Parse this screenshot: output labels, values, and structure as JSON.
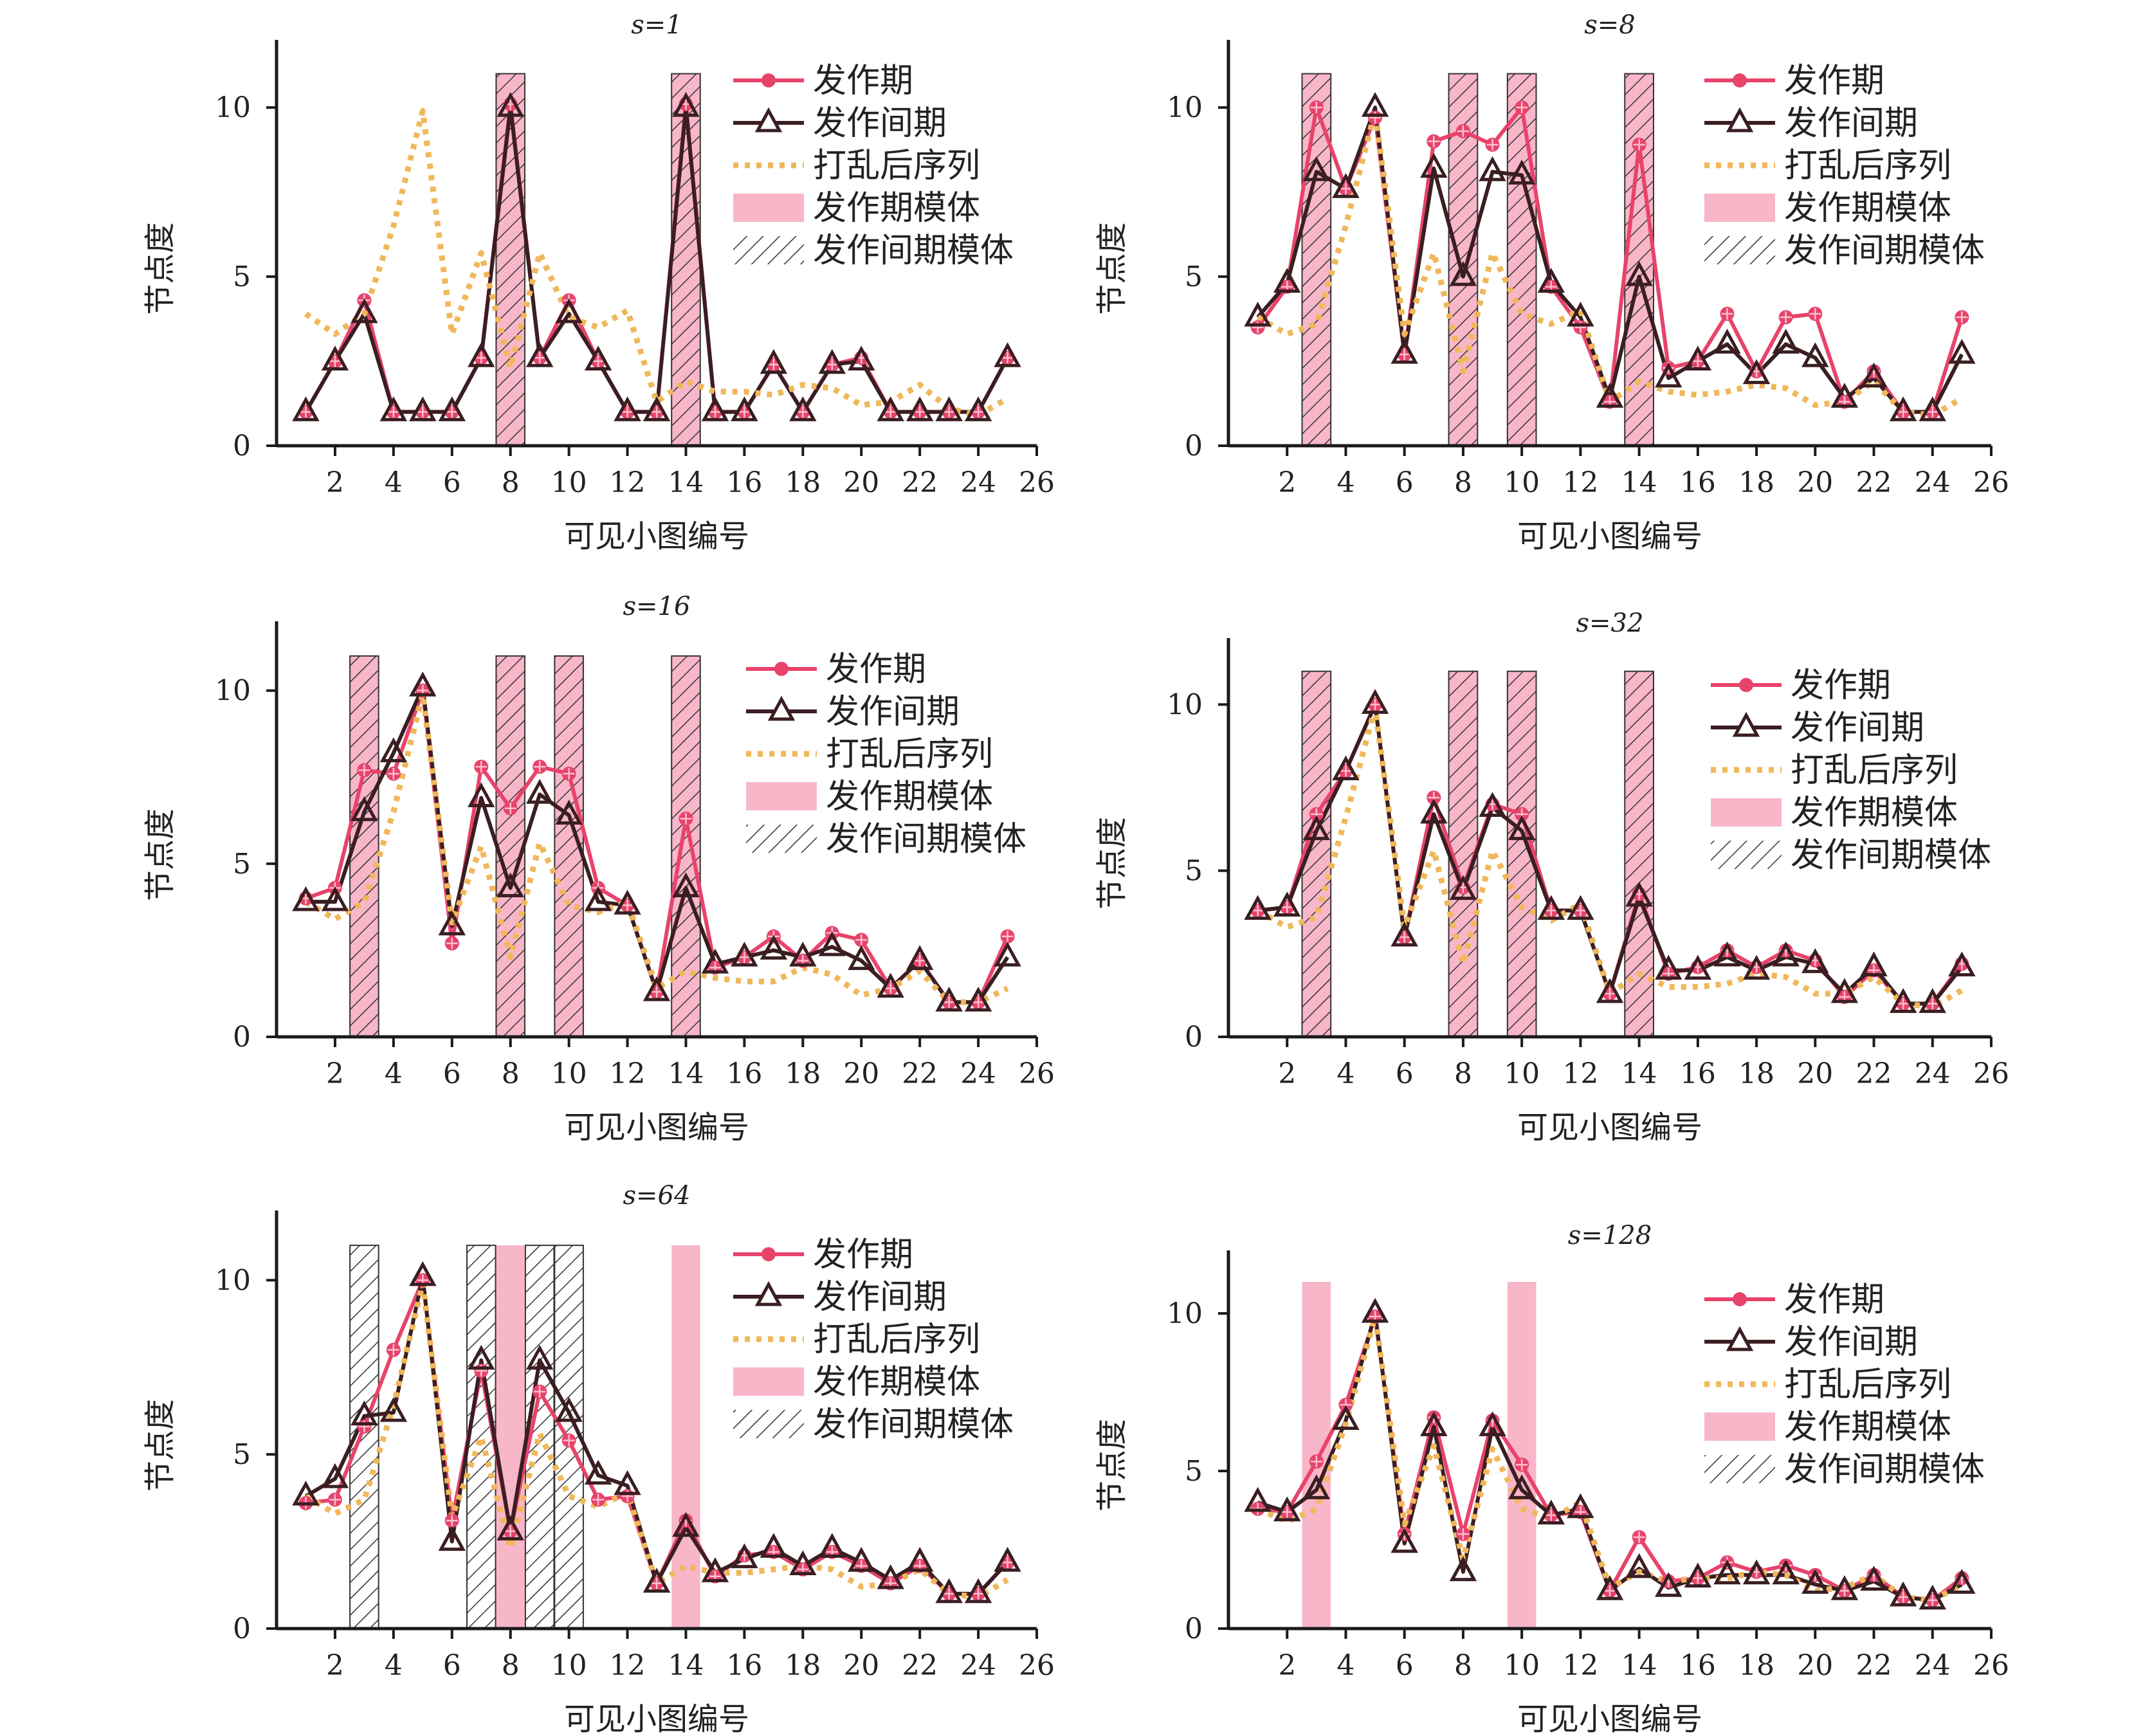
{
  "chart_data": [
    {
      "type": "line",
      "title": "s=1",
      "xlabel": "可见小图编号",
      "ylabel": "节点度",
      "xlim": [
        0,
        26
      ],
      "ylim": [
        0,
        12
      ],
      "xticks": [
        "2",
        "4",
        "6",
        "8",
        "10",
        "12",
        "14",
        "16",
        "18",
        "20",
        "22",
        "24",
        "26"
      ],
      "yticks": [
        "0",
        "5",
        "10"
      ],
      "x": [
        1,
        2,
        3,
        4,
        5,
        6,
        7,
        8,
        9,
        10,
        11,
        12,
        13,
        14,
        15,
        16,
        17,
        18,
        19,
        20,
        21,
        22,
        23,
        24,
        25
      ],
      "series": [
        {
          "name": "发作期",
          "values": [
            1,
            2.5,
            4.3,
            1,
            1,
            1,
            2.6,
            10.1,
            2.6,
            4.3,
            2.5,
            1,
            1,
            10.1,
            1,
            1,
            2.4,
            1,
            2.4,
            2.6,
            1,
            1,
            1,
            1,
            2.6
          ]
        },
        {
          "name": "发作间期",
          "values": [
            1,
            2.5,
            3.9,
            1,
            1,
            1,
            2.6,
            10,
            2.6,
            3.9,
            2.5,
            1,
            1,
            10,
            1,
            1,
            2.4,
            1,
            2.4,
            2.5,
            1,
            1,
            1,
            1,
            2.6
          ]
        },
        {
          "name": "打乱后序列",
          "values": [
            3.9,
            3.3,
            3.9,
            6.5,
            9.9,
            3.3,
            5.7,
            2.3,
            5.7,
            3.8,
            3.5,
            4,
            1.3,
            1.9,
            1.6,
            1.6,
            1.5,
            1.8,
            1.7,
            1.2,
            1.3,
            1.8,
            1.1,
            0.9,
            1.4
          ]
        }
      ],
      "seizure_motif_columns": [
        8,
        14
      ],
      "interictal_motif_columns": [
        8,
        14
      ],
      "legend": [
        "发作期",
        "发作间期",
        "打乱后序列",
        "发作期模体",
        "发作间期模体"
      ],
      "legend_position": "top-right"
    },
    {
      "type": "line",
      "title": "s=8",
      "xlabel": "可见小图编号",
      "ylabel": "节点度",
      "xlim": [
        0,
        26
      ],
      "ylim": [
        0,
        12
      ],
      "xticks": [
        "2",
        "4",
        "6",
        "8",
        "10",
        "12",
        "14",
        "16",
        "18",
        "20",
        "22",
        "24",
        "26"
      ],
      "yticks": [
        "0",
        "5",
        "10"
      ],
      "x": [
        1,
        2,
        3,
        4,
        5,
        6,
        7,
        8,
        9,
        10,
        11,
        12,
        13,
        14,
        15,
        16,
        17,
        18,
        19,
        20,
        21,
        22,
        23,
        24,
        25
      ],
      "series": [
        {
          "name": "发作期",
          "values": [
            3.5,
            4.7,
            10,
            7.6,
            9.7,
            2.7,
            9,
            9.3,
            8.9,
            10,
            4.7,
            3.5,
            1.3,
            8.9,
            2.3,
            2.5,
            3.9,
            2.2,
            3.8,
            3.9,
            1.3,
            2.2,
            1,
            1,
            3.8
          ]
        },
        {
          "name": "发作间期",
          "values": [
            3.8,
            4.8,
            8.1,
            7.6,
            10,
            2.7,
            8.2,
            5,
            8.1,
            8,
            4.8,
            3.8,
            1.4,
            5,
            2,
            2.5,
            3,
            2.1,
            3,
            2.6,
            1.4,
            2,
            1,
            1,
            2.7
          ]
        },
        {
          "name": "打乱后序列",
          "values": [
            3.8,
            3.3,
            3.6,
            6.5,
            9.9,
            3.3,
            5.7,
            2.2,
            5.7,
            3.9,
            3.6,
            4,
            1.3,
            1.9,
            1.6,
            1.5,
            1.6,
            1.8,
            1.7,
            1.2,
            1.3,
            1.9,
            1,
            0.9,
            1.4
          ]
        }
      ],
      "seizure_motif_columns": [
        3,
        8,
        10,
        14
      ],
      "interictal_motif_columns": [
        3,
        8,
        10,
        14
      ],
      "legend": [
        "发作期",
        "发作间期",
        "打乱后序列",
        "发作期模体",
        "发作间期模体"
      ],
      "legend_position": "top-right"
    },
    {
      "type": "line",
      "title": "s=16",
      "xlabel": "可见小图编号",
      "ylabel": "节点度",
      "xlim": [
        0,
        26
      ],
      "ylim": [
        0,
        12
      ],
      "xticks": [
        "2",
        "4",
        "6",
        "8",
        "10",
        "12",
        "14",
        "16",
        "18",
        "20",
        "22",
        "24",
        "26"
      ],
      "yticks": [
        "0",
        "5",
        "10"
      ],
      "x": [
        1,
        2,
        3,
        4,
        5,
        6,
        7,
        8,
        9,
        10,
        11,
        12,
        13,
        14,
        15,
        16,
        17,
        18,
        19,
        20,
        21,
        22,
        23,
        24,
        25
      ],
      "series": [
        {
          "name": "发作期",
          "values": [
            4,
            4.3,
            7.7,
            7.6,
            10,
            2.7,
            7.8,
            6.6,
            7.8,
            7.6,
            4.3,
            3.8,
            1.3,
            6.3,
            2,
            2.3,
            2.9,
            2.2,
            3,
            2.8,
            1.4,
            2.2,
            1,
            1,
            2.9
          ]
        },
        {
          "name": "发作间期",
          "values": [
            3.9,
            3.9,
            6.5,
            8.2,
            10.1,
            3.2,
            6.9,
            4.3,
            7,
            6.4,
            3.9,
            3.8,
            1.3,
            4.3,
            2.1,
            2.3,
            2.5,
            2.3,
            2.6,
            2.2,
            1.4,
            2.2,
            1,
            1,
            2.3
          ]
        },
        {
          "name": "打乱后序列",
          "values": [
            3.9,
            3.4,
            3.9,
            6.5,
            9.9,
            3.3,
            5.5,
            2.3,
            5.6,
            3.8,
            3.6,
            3.9,
            1.4,
            1.9,
            1.7,
            1.6,
            1.6,
            2,
            1.8,
            1.2,
            1.4,
            1.9,
            1,
            1,
            1.4
          ]
        }
      ],
      "seizure_motif_columns": [
        3,
        8,
        10,
        14
      ],
      "interictal_motif_columns": [
        3,
        8,
        10,
        14
      ],
      "legend": [
        "发作期",
        "发作间期",
        "打乱后序列",
        "发作期模体",
        "发作间期模体"
      ],
      "legend_position": "top-right"
    },
    {
      "type": "line",
      "title": "s=32",
      "xlabel": "可见小图编号",
      "ylabel": "节点度",
      "xlim": [
        0,
        26
      ],
      "ylim": [
        0,
        12
      ],
      "xticks": [
        "2",
        "4",
        "6",
        "8",
        "10",
        "12",
        "14",
        "16",
        "18",
        "20",
        "22",
        "24",
        "26"
      ],
      "yticks": [
        "0",
        "5",
        "10"
      ],
      "x": [
        1,
        2,
        3,
        4,
        5,
        6,
        7,
        8,
        9,
        10,
        11,
        12,
        13,
        14,
        15,
        16,
        17,
        18,
        19,
        20,
        21,
        22,
        23,
        24,
        25
      ],
      "series": [
        {
          "name": "发作期",
          "values": [
            3.8,
            3.9,
            6.7,
            8,
            10,
            3,
            7.2,
            4.5,
            7,
            6.7,
            3.8,
            3.8,
            1.3,
            4.3,
            1.9,
            2.1,
            2.6,
            2.1,
            2.6,
            2.3,
            1.2,
            2,
            1,
            1,
            2.2
          ]
        },
        {
          "name": "发作间期",
          "values": [
            3.8,
            3.9,
            6.2,
            8,
            10,
            3,
            6.7,
            4.4,
            6.9,
            6.2,
            3.8,
            3.8,
            1.3,
            4.2,
            2,
            2,
            2.4,
            2,
            2.4,
            2.2,
            1.3,
            2.1,
            1,
            1,
            2.1
          ]
        },
        {
          "name": "打乱后序列",
          "values": [
            3.8,
            3.3,
            3.6,
            6.6,
            9.9,
            3.3,
            5.6,
            2.2,
            5.6,
            3.9,
            3.5,
            4,
            1.3,
            1.9,
            1.5,
            1.5,
            1.6,
            1.9,
            1.8,
            1.3,
            1.3,
            1.8,
            1,
            0.9,
            1.4
          ]
        }
      ],
      "seizure_motif_columns": [
        3,
        8,
        10,
        14
      ],
      "interictal_motif_columns": [
        3,
        8,
        10,
        14
      ],
      "legend": [
        "发作期",
        "发作间期",
        "打乱后序列",
        "发作期模体",
        "发作间期模体"
      ],
      "legend_position": "top-right"
    },
    {
      "type": "line",
      "title": "s=64",
      "xlabel": "可见小图编号",
      "ylabel": "节点度",
      "xlim": [
        0,
        26
      ],
      "ylim": [
        0,
        12
      ],
      "xticks": [
        "2",
        "4",
        "6",
        "8",
        "10",
        "12",
        "14",
        "16",
        "18",
        "20",
        "22",
        "24",
        "26"
      ],
      "yticks": [
        "0",
        "5",
        "10"
      ],
      "x": [
        1,
        2,
        3,
        4,
        5,
        6,
        7,
        8,
        9,
        10,
        11,
        12,
        13,
        14,
        15,
        16,
        17,
        18,
        19,
        20,
        21,
        22,
        23,
        24,
        25
      ],
      "series": [
        {
          "name": "发作期",
          "values": [
            3.6,
            3.7,
            5.8,
            8,
            10,
            3.1,
            7.4,
            2.8,
            6.8,
            5.4,
            3.7,
            3.8,
            1.3,
            3.1,
            1.5,
            2.1,
            2.2,
            1.7,
            2.2,
            1.8,
            1.3,
            1.8,
            1,
            1,
            1.9
          ]
        },
        {
          "name": "发作间期",
          "values": [
            3.8,
            4.3,
            6.1,
            6.2,
            10.1,
            2.5,
            7.7,
            2.8,
            7.7,
            6.2,
            4.4,
            4.1,
            1.3,
            2.9,
            1.6,
            2,
            2.3,
            1.8,
            2.3,
            1.9,
            1.4,
            1.9,
            1,
            1,
            1.9
          ]
        },
        {
          "name": "打乱后序列",
          "values": [
            3.8,
            3.3,
            3.7,
            6.4,
            9.9,
            3.2,
            5.5,
            2.3,
            5.6,
            3.8,
            3.5,
            3.9,
            1.3,
            1.8,
            1.6,
            1.6,
            1.7,
            1.8,
            1.7,
            1.2,
            1.3,
            1.7,
            1,
            0.9,
            1.4
          ]
        }
      ],
      "seizure_motif_columns": [
        8,
        14
      ],
      "interictal_motif_columns": [
        3,
        7,
        9,
        10
      ],
      "legend": [
        "发作期",
        "发作间期",
        "打乱后序列",
        "发作期模体",
        "发作间期模体"
      ],
      "legend_position": "top-right"
    },
    {
      "type": "line",
      "title": "s=128",
      "xlabel": "可见小图编号",
      "ylabel": "节点度",
      "xlim": [
        0,
        26
      ],
      "ylim": [
        0,
        12
      ],
      "xticks": [
        "2",
        "4",
        "6",
        "8",
        "10",
        "12",
        "14",
        "16",
        "18",
        "20",
        "22",
        "24",
        "26"
      ],
      "yticks": [
        "0",
        "5",
        "10"
      ],
      "x": [
        1,
        2,
        3,
        4,
        5,
        6,
        7,
        8,
        9,
        10,
        11,
        12,
        13,
        14,
        15,
        16,
        17,
        18,
        19,
        20,
        21,
        22,
        23,
        24,
        25
      ],
      "series": [
        {
          "name": "发作期",
          "values": [
            3.8,
            3.7,
            5.3,
            7.1,
            9.9,
            3,
            6.7,
            3,
            6.6,
            5.2,
            3.6,
            3.7,
            1.2,
            2.9,
            1.5,
            1.6,
            2.1,
            1.8,
            2,
            1.7,
            1.2,
            1.7,
            1,
            0.9,
            1.6
          ]
        },
        {
          "name": "发作间期",
          "values": [
            4,
            3.7,
            4.4,
            6.6,
            10,
            2.7,
            6.4,
            1.8,
            6.4,
            4.4,
            3.6,
            3.8,
            1.2,
            1.9,
            1.3,
            1.6,
            1.7,
            1.7,
            1.7,
            1.4,
            1.2,
            1.5,
            1,
            0.9,
            1.4
          ]
        },
        {
          "name": "打乱后序列",
          "values": [
            3.8,
            3.4,
            3.8,
            6.5,
            9.9,
            3.3,
            5.8,
            2.2,
            5.7,
            3.8,
            3.5,
            4,
            1.3,
            1.8,
            1.5,
            1.6,
            1.6,
            1.8,
            1.7,
            1.2,
            1.3,
            1.7,
            1,
            0.9,
            1.4
          ]
        }
      ],
      "seizure_motif_columns": [
        3,
        10
      ],
      "interictal_motif_columns": [],
      "legend": [
        "发作期",
        "发作间期",
        "打乱后序列",
        "发作期模体",
        "发作间期模体"
      ],
      "legend_position": "top-right"
    }
  ],
  "colors": {
    "seizure_line": "#e8436b",
    "interictal_line": "#3a1e22",
    "shuffled_line": "#f0b85a",
    "seizure_motif_fill": "#f7a9bf",
    "interictal_motif_hatch": "#333333",
    "axis": "#1a1a1a"
  }
}
